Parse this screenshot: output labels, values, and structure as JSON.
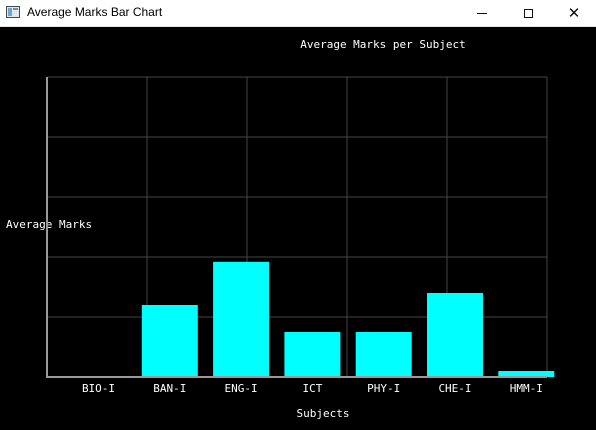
{
  "window": {
    "title": "Average Marks Bar Chart",
    "controls": {
      "minimize_icon": "minimize-icon",
      "maximize_icon": "maximize-icon",
      "close_icon": "close-icon"
    }
  },
  "chart_data": {
    "type": "bar",
    "title": "Average Marks per Subject",
    "xlabel": "Subjects",
    "ylabel": "Average Marks",
    "categories": [
      "BIO-I",
      "BAN-I",
      "ENG-I",
      "ICT",
      "PHY-I",
      "CHE-I",
      "HMM-I"
    ],
    "values": [
      0,
      12,
      19.2,
      7.5,
      7.5,
      14,
      1
    ],
    "ylim": [
      0,
      50
    ],
    "grid": true,
    "colors": {
      "bar": "#00ffff",
      "grid": "#444444",
      "axis": "#9a9a9a",
      "background": "#000000"
    }
  }
}
